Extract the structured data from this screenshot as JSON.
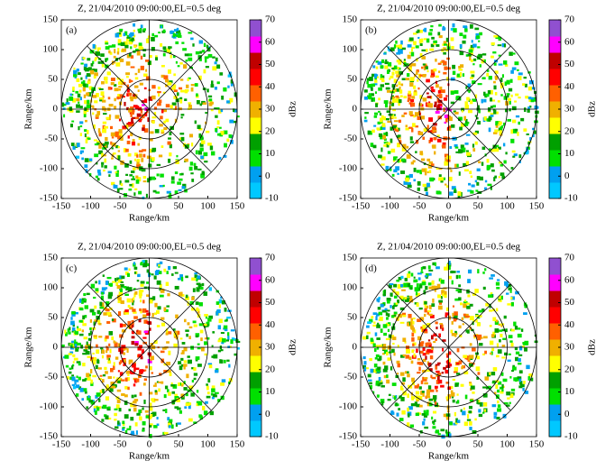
{
  "chart_data": [
    {
      "type": "radar_ppi",
      "title": "Z, 21/04/2010 09:00:00,EL=0.5  deg",
      "panel_label": "(a)",
      "xlabel": "Range/km",
      "ylabel": "Range/km",
      "xlim": [
        -150,
        150
      ],
      "ylim": [
        -150,
        150
      ],
      "xticks": [
        -150,
        -100,
        -50,
        0,
        50,
        100,
        150
      ],
      "yticks": [
        -150,
        -100,
        -50,
        0,
        50,
        100,
        150
      ],
      "polar_grid": true,
      "colorbar": {
        "label": "dBz",
        "lim": [
          -10,
          70
        ],
        "ticks": [
          -10,
          0,
          10,
          20,
          30,
          40,
          50,
          60,
          70
        ],
        "colors": [
          "#00c8ff",
          "#00a0f0",
          "#00e000",
          "#00a000",
          "#ffff00",
          "#f0b000",
          "#ff6000",
          "#ff0000",
          "#c00000",
          "#ff00ff",
          "#9050d0"
        ]
      }
    },
    {
      "type": "radar_ppi",
      "title": "Z, 21/04/2010 09:00:00,EL=0.5  deg",
      "panel_label": "(b)",
      "xlabel": "Range/km",
      "ylabel": "Range/km",
      "xlim": [
        -150,
        150
      ],
      "ylim": [
        -150,
        150
      ],
      "xticks": [
        -150,
        -100,
        -50,
        0,
        50,
        100,
        150
      ],
      "yticks": [
        -150,
        -100,
        -50,
        0,
        50,
        100,
        150
      ],
      "polar_grid": true,
      "colorbar": {
        "label": "dBz",
        "lim": [
          -10,
          70
        ],
        "ticks": [
          -10,
          0,
          10,
          20,
          30,
          40,
          50,
          60,
          70
        ],
        "colors": [
          "#00c8ff",
          "#00a0f0",
          "#00e000",
          "#00a000",
          "#ffff00",
          "#f0b000",
          "#ff6000",
          "#ff0000",
          "#c00000",
          "#ff00ff",
          "#9050d0"
        ]
      }
    },
    {
      "type": "radar_ppi",
      "title": "Z, 21/04/2010 09:00:00,EL=0.5  deg",
      "panel_label": "(c)",
      "xlabel": "Range/km",
      "ylabel": "Range/km",
      "xlim": [
        -150,
        150
      ],
      "ylim": [
        -150,
        150
      ],
      "xticks": [
        -150,
        -100,
        -50,
        0,
        50,
        100,
        150
      ],
      "yticks": [
        -150,
        -100,
        -50,
        0,
        50,
        100,
        150
      ],
      "polar_grid": true,
      "colorbar": {
        "label": "dBz",
        "lim": [
          -10,
          70
        ],
        "ticks": [
          -10,
          0,
          10,
          20,
          30,
          40,
          50,
          60,
          70
        ],
        "colors": [
          "#00c8ff",
          "#00a0f0",
          "#00e000",
          "#00a000",
          "#ffff00",
          "#f0b000",
          "#ff6000",
          "#ff0000",
          "#c00000",
          "#ff00ff",
          "#9050d0"
        ]
      }
    },
    {
      "type": "radar_ppi",
      "title": "Z, 21/04/2010 09:00:00,EL=0.5  deg",
      "panel_label": "(d)",
      "xlabel": "Range/km",
      "ylabel": "Range/km",
      "xlim": [
        -150,
        150
      ],
      "ylim": [
        -150,
        150
      ],
      "xticks": [
        -150,
        -100,
        -50,
        0,
        50,
        100,
        150
      ],
      "yticks": [
        -150,
        -100,
        -50,
        0,
        50,
        100,
        150
      ],
      "polar_grid": true,
      "colorbar": {
        "label": "dBz",
        "lim": [
          -10,
          70
        ],
        "ticks": [
          -10,
          0,
          10,
          20,
          30,
          40,
          50,
          60,
          70
        ],
        "colors": [
          "#00c8ff",
          "#00a0f0",
          "#00e000",
          "#00a000",
          "#ffff00",
          "#f0b000",
          "#ff6000",
          "#ff0000",
          "#c00000",
          "#ff00ff",
          "#9050d0"
        ]
      }
    }
  ]
}
